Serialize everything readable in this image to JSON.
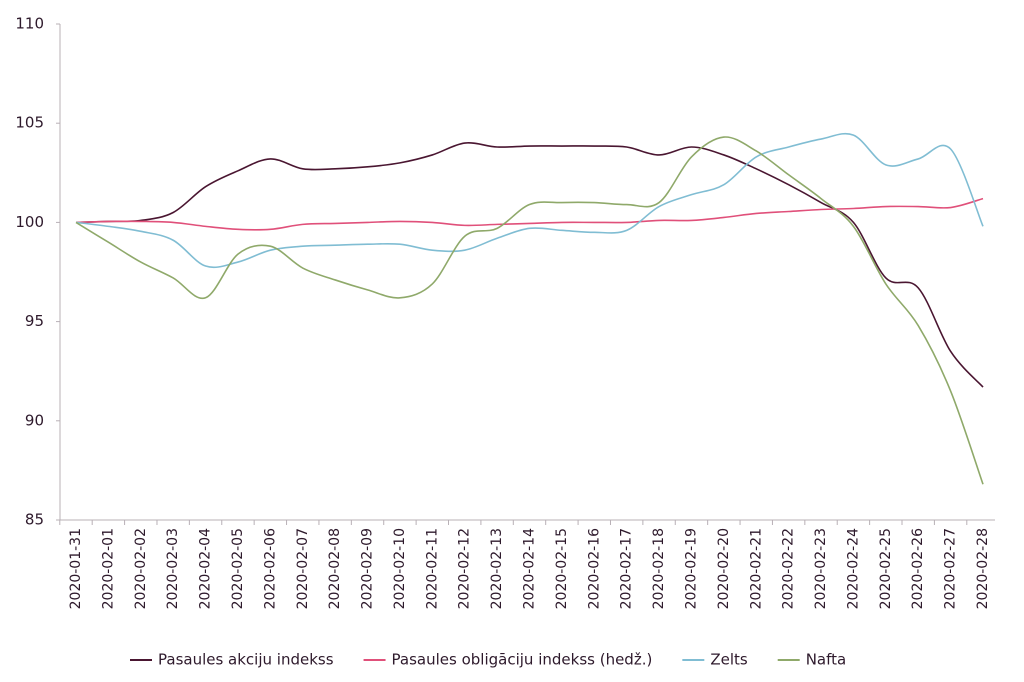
{
  "chart_data": {
    "type": "line",
    "categories": [
      "2020-01-31",
      "2020-02-01",
      "2020-02-02",
      "2020-02-03",
      "2020-02-04",
      "2020-02-05",
      "2020-02-06",
      "2020-02-07",
      "2020-02-08",
      "2020-02-09",
      "2020-02-10",
      "2020-02-11",
      "2020-02-12",
      "2020-02-13",
      "2020-02-14",
      "2020-02-15",
      "2020-02-16",
      "2020-02-17",
      "2020-02-18",
      "2020-02-19",
      "2020-02-20",
      "2020-02-21",
      "2020-02-22",
      "2020-02-23",
      "2020-02-24",
      "2020-02-25",
      "2020-02-26",
      "2020-02-27",
      "2020-02-28"
    ],
    "series": [
      {
        "name": "Pasaules akciju indekss",
        "color": "#4a1631",
        "values": [
          100,
          100.05,
          100.1,
          100.5,
          101.8,
          102.6,
          103.2,
          102.7,
          102.7,
          102.8,
          103.0,
          103.4,
          104.0,
          103.8,
          103.85,
          103.85,
          103.85,
          103.8,
          103.4,
          103.8,
          103.4,
          102.7,
          101.9,
          101.0,
          100.0,
          97.2,
          96.7,
          93.5,
          91.7
        ]
      },
      {
        "name": "Pasaules obligāciju indekss (hedž.)",
        "color": "#e0507a",
        "values": [
          100,
          100.05,
          100.05,
          100.0,
          99.8,
          99.65,
          99.65,
          99.9,
          99.95,
          100.0,
          100.05,
          100.0,
          99.85,
          99.9,
          99.95,
          100.0,
          100.0,
          100.0,
          100.1,
          100.1,
          100.25,
          100.45,
          100.55,
          100.65,
          100.7,
          100.8,
          100.8,
          100.75,
          101.2
        ]
      },
      {
        "name": "Zelts",
        "color": "#80bdd3",
        "values": [
          100,
          99.8,
          99.55,
          99.1,
          97.8,
          98.0,
          98.6,
          98.8,
          98.85,
          98.9,
          98.9,
          98.6,
          98.6,
          99.2,
          99.7,
          99.6,
          99.5,
          99.6,
          100.8,
          101.4,
          101.9,
          103.3,
          103.8,
          104.2,
          104.4,
          102.9,
          103.2,
          103.7,
          99.8
        ]
      },
      {
        "name": "Nafta",
        "color": "#8fa96a",
        "values": [
          100,
          99.0,
          98.0,
          97.2,
          96.2,
          98.4,
          98.8,
          97.7,
          97.1,
          96.6,
          96.2,
          96.9,
          99.3,
          99.7,
          100.9,
          101.0,
          101.0,
          100.9,
          101.0,
          103.3,
          104.3,
          103.6,
          102.4,
          101.2,
          99.8,
          96.9,
          94.8,
          91.5,
          86.8
        ]
      }
    ],
    "ylim": [
      85,
      110
    ],
    "yticks": [
      85,
      90,
      95,
      100,
      105,
      110
    ],
    "grid": false,
    "legend": "bottom"
  }
}
